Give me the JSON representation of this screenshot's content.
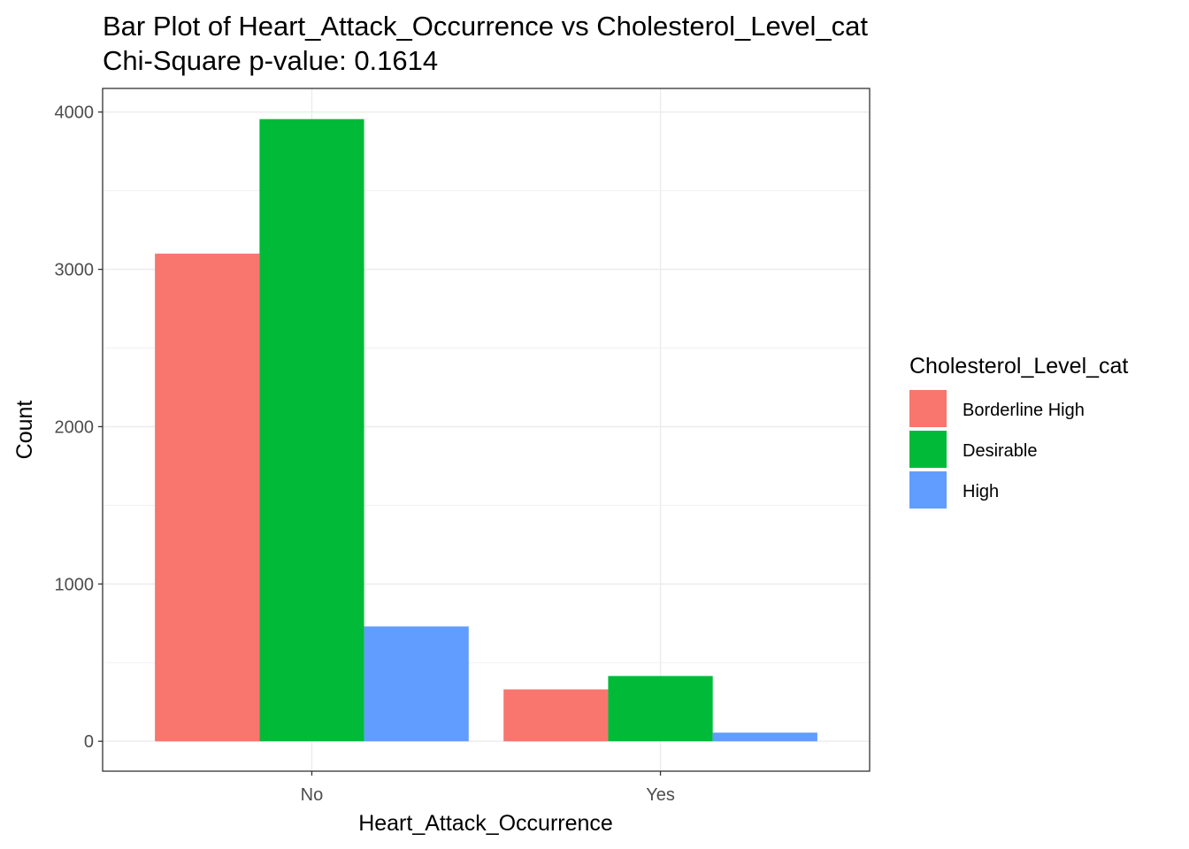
{
  "chart_data": {
    "type": "bar",
    "title": "Bar Plot of Heart_Attack_Occurrence vs Cholesterol_Level_cat",
    "subtitle": "Chi-Square p-value: 0.1614",
    "xlabel": "Heart_Attack_Occurrence",
    "ylabel": "Count",
    "categories": [
      "No",
      "Yes"
    ],
    "ylim": [
      -190,
      4150
    ],
    "yticks": [
      0,
      1000,
      2000,
      3000,
      4000
    ],
    "ytick_labels": [
      "0",
      "1000",
      "2000",
      "3000",
      "4000"
    ],
    "grid": true,
    "legend": {
      "title": "Cholesterol_Level_cat",
      "position": "right"
    },
    "series": [
      {
        "name": "Borderline High",
        "color": "#F8766D",
        "values": [
          3100,
          330
        ]
      },
      {
        "name": "Desirable",
        "color": "#00BA38",
        "values": [
          3955,
          415
        ]
      },
      {
        "name": "High",
        "color": "#619CFF",
        "values": [
          730,
          55
        ]
      }
    ]
  }
}
